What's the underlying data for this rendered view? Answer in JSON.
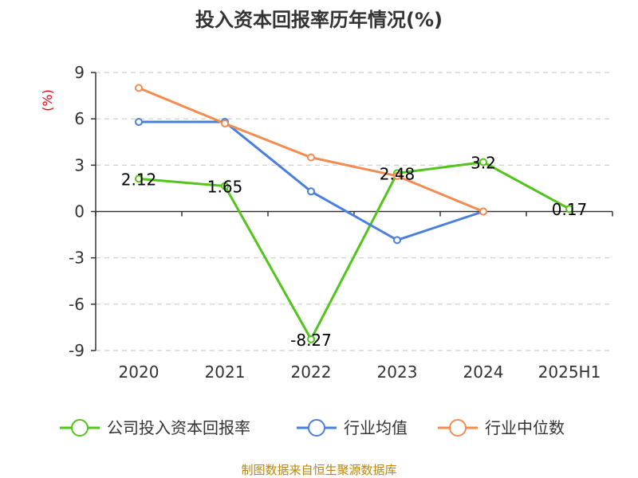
{
  "chart_data": {
    "type": "line",
    "title": "投入资本回报率历年情况(%)",
    "unit_label": "(%)",
    "categories": [
      "2020",
      "2021",
      "2022",
      "2023",
      "2024",
      "2025H1"
    ],
    "ylim": [
      -9,
      9
    ],
    "yticks": [
      "9",
      "6",
      "3",
      "0",
      "-3",
      "-6",
      "-9"
    ],
    "grid": true,
    "legend_position": "bottom",
    "series": [
      {
        "name": "公司投入资本回报率",
        "color": "#52c41a",
        "values": [
          2.12,
          1.65,
          -8.27,
          2.48,
          3.2,
          0.17
        ],
        "labels": [
          "2.12",
          "1.65",
          "-8.27",
          "2.48",
          "3.2",
          "0.17"
        ]
      },
      {
        "name": "行业均值",
        "color": "#4a7fdc",
        "values": [
          5.8,
          5.8,
          1.3,
          -1.85,
          0.0,
          null
        ]
      },
      {
        "name": "行业中位数",
        "color": "#f28c50",
        "values": [
          8.0,
          5.7,
          3.5,
          2.3,
          0.0,
          null
        ]
      }
    ],
    "source": "制图数据来自恒生聚源数据库"
  }
}
